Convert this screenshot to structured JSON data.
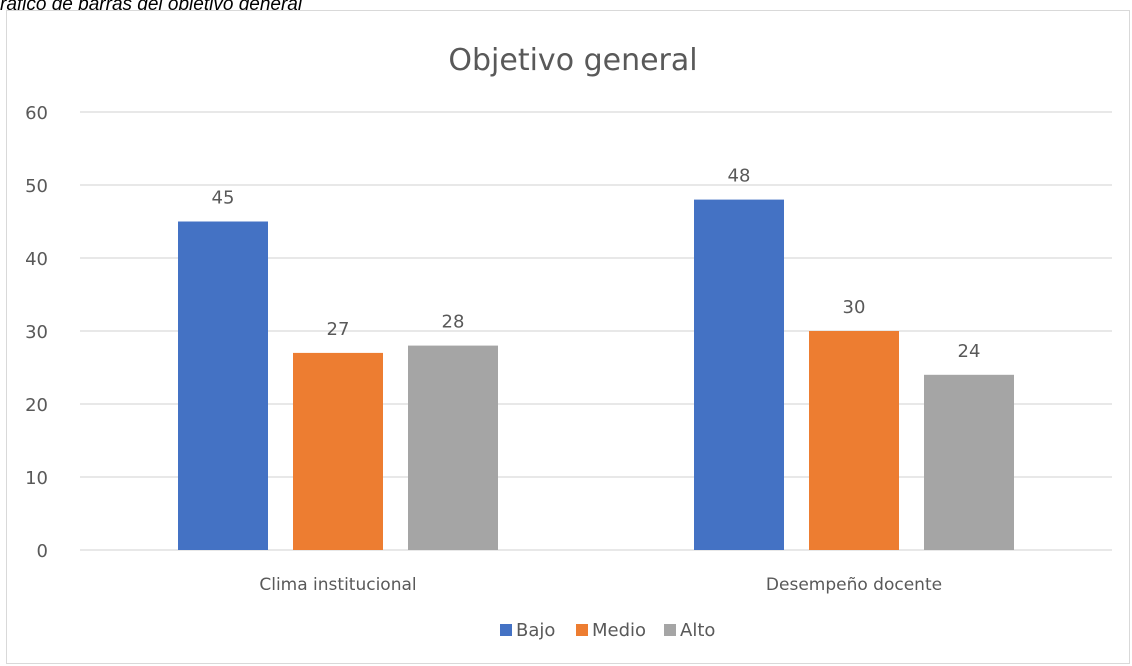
{
  "caption": "ráfico de barras del objetivo general",
  "chart_data": {
    "type": "bar",
    "title": "Objetivo general",
    "xlabel": "",
    "ylabel": "",
    "categories": [
      "Clima institucional",
      "Desempeño docente"
    ],
    "series": [
      {
        "name": "Bajo",
        "color": "#4472c4",
        "values": [
          45,
          48
        ]
      },
      {
        "name": "Medio",
        "color": "#ed7d31",
        "values": [
          27,
          30
        ]
      },
      {
        "name": "Alto",
        "color": "#a5a5a5",
        "values": [
          28,
          24
        ]
      }
    ],
    "ylim": [
      0,
      60
    ],
    "yticks": [
      "0",
      "10",
      "20",
      "30",
      "40",
      "50",
      "60"
    ],
    "grid": true,
    "legend_position": "bottom"
  }
}
